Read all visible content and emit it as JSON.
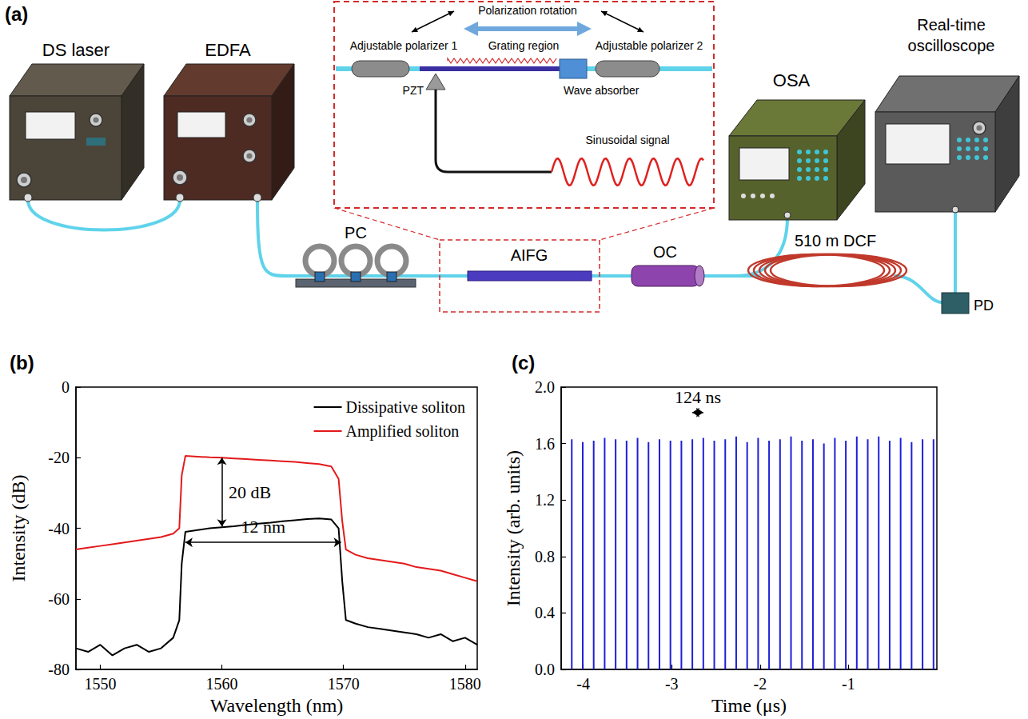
{
  "diagram": {
    "label": "(a)",
    "ds_laser": "DS laser",
    "edfa": "EDFA",
    "pc": "PC",
    "aifg": "AIFG",
    "oc": "OC",
    "osa": "OSA",
    "dcf": "510 m DCF",
    "pd": "PD",
    "oscilloscope": "Real-time oscilloscope",
    "inset": {
      "polarization_rotation": "Polarization rotation",
      "polarizer_1": "Adjustable polarizer 1",
      "grating_region": "Grating region",
      "polarizer_2": "Adjustable polarizer 2",
      "pzt": "PZT",
      "wave_absorber": "Wave absorber",
      "signal": "Sinusoidal signal"
    }
  },
  "chart_data": [
    {
      "type": "line",
      "label": "(b)",
      "x_label": "Wavelength (nm)",
      "y_label": "Intensity (dB)",
      "x": [
        1548,
        1549,
        1550,
        1551,
        1552,
        1553,
        1554,
        1555,
        1556,
        1556.5,
        1556.7,
        1557,
        1558,
        1559,
        1560,
        1561,
        1562,
        1563,
        1564,
        1565,
        1566,
        1567,
        1568,
        1569,
        1569.6,
        1569.9,
        1570.2,
        1571,
        1572,
        1573,
        1574,
        1575,
        1576,
        1577,
        1578,
        1579,
        1580,
        1581
      ],
      "series": [
        {
          "name": "Dissipative soliton",
          "color": "#000000",
          "values": [
            -74,
            -75,
            -73,
            -76,
            -74,
            -73,
            -75,
            -74,
            -71,
            -66,
            -50,
            -41,
            -40.5,
            -40,
            -39.7,
            -39.4,
            -39,
            -38.7,
            -38.4,
            -38,
            -37.7,
            -37.4,
            -37.2,
            -37.5,
            -40,
            -55,
            -66,
            -67,
            -68,
            -68.5,
            -69,
            -69.5,
            -70,
            -71,
            -70,
            -72,
            -71,
            -73
          ]
        },
        {
          "name": "Amplified soliton",
          "color": "#e31a1c",
          "values": [
            -46,
            -45.5,
            -45,
            -44.5,
            -44,
            -43.5,
            -43,
            -42.5,
            -41.5,
            -40,
            -25,
            -19.5,
            -19.7,
            -19.9,
            -20,
            -20.2,
            -20.4,
            -20.6,
            -20.8,
            -21,
            -21.2,
            -21.5,
            -21.8,
            -22.5,
            -26,
            -38,
            -46,
            -47.5,
            -48.5,
            -49,
            -49.5,
            -50,
            -51,
            -51.5,
            -52,
            -53,
            -54,
            -55
          ]
        }
      ],
      "xlim": [
        1548,
        1581
      ],
      "xticks": [
        1550,
        1560,
        1570,
        1580
      ],
      "ylim": [
        -80,
        0
      ],
      "yticks": [
        -80,
        -60,
        -40,
        -20,
        0
      ],
      "grid": false,
      "legend": "upper right",
      "annotations": [
        {
          "text": "20 dB",
          "x": 1560,
          "y": [
            -20,
            -39.5
          ]
        },
        {
          "text": "12 nm",
          "x": [
            1557,
            1569.8
          ],
          "y": -44
        }
      ]
    },
    {
      "type": "bar",
      "label": "(c)",
      "x_label": "Time (μs)",
      "y_label": "Intensity (arb. units)",
      "x": [
        -4.13,
        -4.006,
        -3.882,
        -3.758,
        -3.634,
        -3.51,
        -3.386,
        -3.262,
        -3.138,
        -3.014,
        -2.89,
        -2.766,
        -2.642,
        -2.518,
        -2.394,
        -2.27,
        -2.146,
        -2.022,
        -1.898,
        -1.774,
        -1.65,
        -1.526,
        -1.402,
        -1.278,
        -1.154,
        -1.03,
        -0.906,
        -0.782,
        -0.658,
        -0.534,
        -0.41,
        -0.286,
        -0.162,
        -0.038
      ],
      "values": [
        1.63,
        1.61,
        1.62,
        1.64,
        1.63,
        1.62,
        1.64,
        1.61,
        1.63,
        1.62,
        1.62,
        1.63,
        1.64,
        1.62,
        1.63,
        1.65,
        1.61,
        1.64,
        1.62,
        1.63,
        1.65,
        1.62,
        1.63,
        1.6,
        1.64,
        1.62,
        1.65,
        1.63,
        1.65,
        1.62,
        1.64,
        1.61,
        1.63,
        1.63
      ],
      "color": "#1f1fdb",
      "xlim": [
        -4.25,
        0
      ],
      "xticks": [
        -4,
        -3,
        -2,
        -1
      ],
      "ylim": [
        0,
        2
      ],
      "yticks": [
        {
          "value": 0,
          "label": "0.0"
        },
        {
          "value": 0.4,
          "label": "0.4"
        },
        {
          "value": 0.8,
          "label": "0.8"
        },
        {
          "value": 1.2,
          "label": "1.2"
        },
        {
          "value": 1.6,
          "label": "1.6"
        },
        {
          "value": 2,
          "label": "2.0"
        }
      ],
      "grid": false,
      "annotations": [
        {
          "text": "124 ns",
          "x": [
            -2.766,
            -2.642
          ],
          "y": 1.82
        }
      ]
    }
  ]
}
